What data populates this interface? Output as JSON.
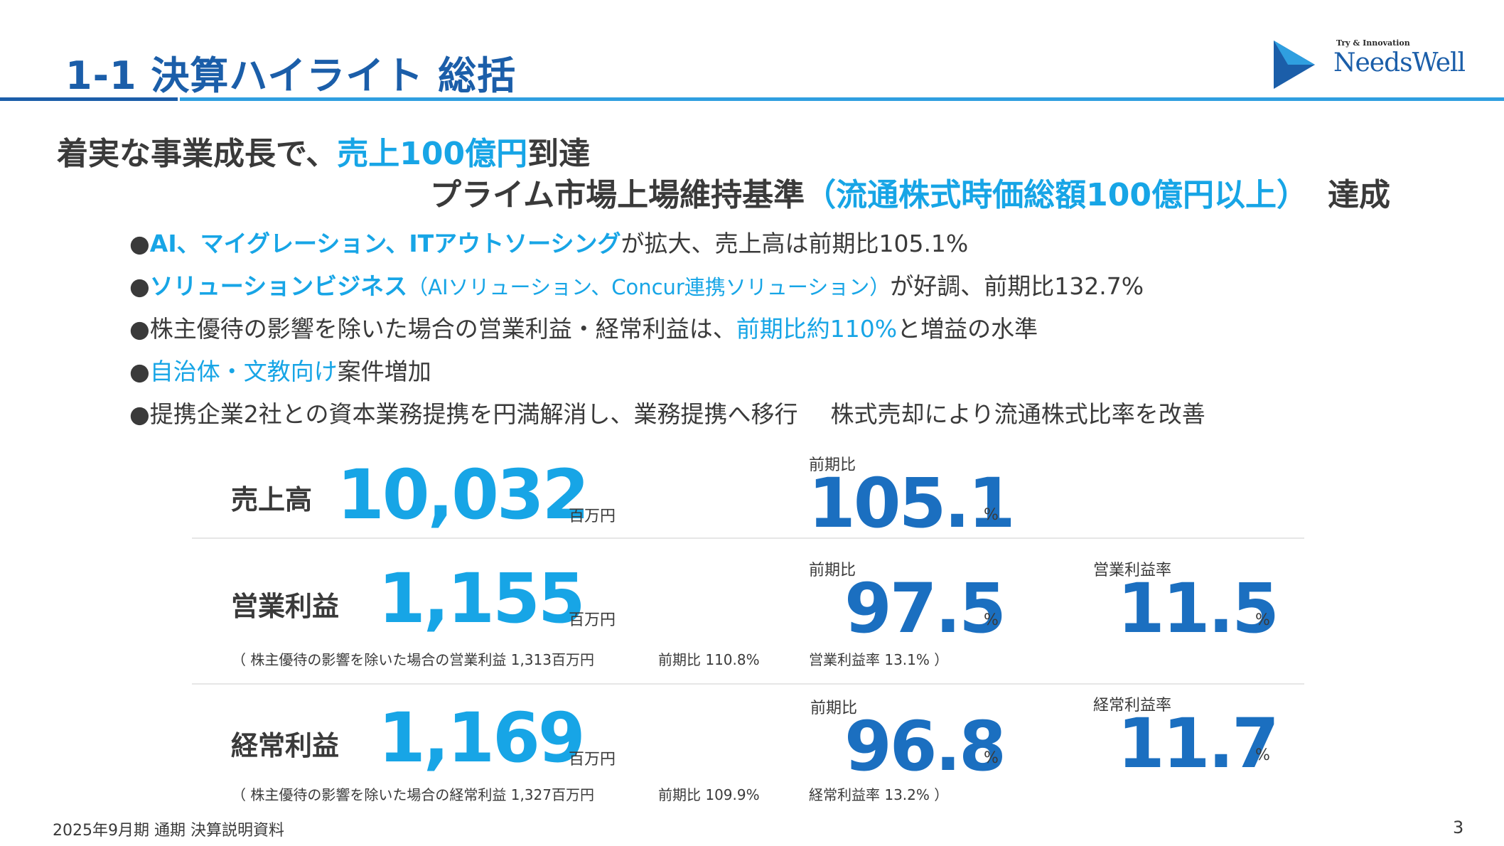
{
  "header": {
    "title": "1-1 決算ハイライト 総括",
    "logo_tagline": "Try & Innovation",
    "logo_name": "NeedsWell",
    "colors": {
      "dark_blue": "#1b5ea9",
      "light_blue": "#17a5e6"
    }
  },
  "headline": {
    "line1_prefix": "着実な事業成長で、",
    "line1_accent": "売上100億円",
    "line1_suffix": "到達",
    "line2_prefix": "プライム市場上場維持基準",
    "line2_accent": "（流通株式時価総額100億円以上）",
    "line2_suffix": "達成"
  },
  "bullets": {
    "marker": "●",
    "b1": {
      "hl": "AI、マイグレーション、ITアウトソーシング",
      "text": "が拡大、売上高は前期比105.1%"
    },
    "b2": {
      "hl": "ソリューションビジネス",
      "hl_sub": "（AIソリューション、Concur連携ソリューション）",
      "text": "が好調、前期比132.7%"
    },
    "b3": {
      "text": "株主優待の影響を除いた場合の営業利益・経常利益は、",
      "hl": "前期比約110%",
      "text2": "と増益の水準"
    },
    "b4": {
      "hl": "自治体・文教向け",
      "text": "案件増加"
    },
    "b5": {
      "text": "提携企業2社との資本業務提携を円満解消し、業務提携へ移行",
      "text2": "株式売却により流通株式比率を改善"
    }
  },
  "metrics": {
    "sales": {
      "label": "売上高",
      "value": "10,032",
      "unit": "百万円",
      "yoy_label": "前期比",
      "yoy_value": "105.1",
      "yoy_unit": "%"
    },
    "operating_profit": {
      "label": "営業利益",
      "value": "1,155",
      "unit": "百万円",
      "yoy_label": "前期比",
      "yoy_value": "97.5",
      "yoy_unit": "%",
      "margin_label": "営業利益率",
      "margin_value": "11.5",
      "margin_unit": "%",
      "note_1": "（ 株主優待の影響を除いた場合の営業利益  1,313百万円",
      "note_2": "前期比  110.8%",
      "note_3": "営業利益率  13.1% ）"
    },
    "ordinary_profit": {
      "label": "経常利益",
      "value": "1,169",
      "unit": "百万円",
      "yoy_label": "前期比",
      "yoy_value": "96.8",
      "yoy_unit": "%",
      "margin_label": "経常利益率",
      "margin_value": "11.7",
      "margin_unit": "%",
      "note_1": "（ 株主優待の影響を除いた場合の経常利益  1,327百万円",
      "note_2": "前期比  109.9%",
      "note_3": "経常利益率  13.2% ）"
    }
  },
  "footer": {
    "text": "2025年9月期 通期 決算説明資料",
    "page": "3"
  }
}
